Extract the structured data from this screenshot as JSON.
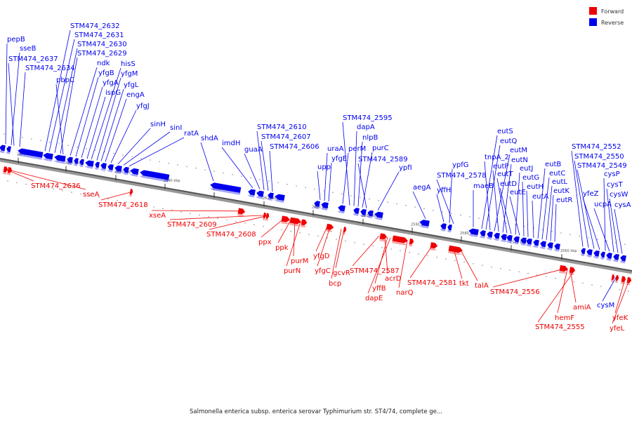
{
  "legend": {
    "forward_label": "Forward",
    "reverse_label": "Reverse",
    "forward_color": "#ee0000",
    "reverse_color": "#0000ee"
  },
  "caption": "Salmonella enterica subsp. enterica serovar Typhimurium str. ST4/74, complete ge...",
  "ticks": [
    "2670 kbp",
    "2660 kbp",
    "2650 kbp",
    "2640 kbp",
    "2630 kbp",
    "2620 kbp",
    "2610 kbp",
    "2600 kbp",
    "2590 kbp",
    "2580 kbp",
    "2570 kbp",
    "2560 kbp"
  ],
  "reverse_labels": [
    "pepB",
    "sseB",
    "STM474_2637",
    "STM474_2634",
    "STM474_2632",
    "STM474_2631",
    "STM474_2630",
    "STM474_2629",
    "pbpC",
    "ndk",
    "yfgB",
    "yfgA",
    "ispG",
    "hisS",
    "yfgM",
    "yfgL",
    "engA",
    "yfgJ",
    "sinH",
    "sinI",
    "ratA",
    "shdA",
    "imdH",
    "guaA",
    "STM474_2610",
    "STM474_2607",
    "STM474_2606",
    "upp",
    "uraA",
    "yfgE",
    "perM",
    "STM474_2595",
    "dapA",
    "nlpB",
    "purC",
    "STM474_2589",
    "ypfI",
    "aegA",
    "yffH",
    "ypfG",
    "STM474_2578",
    "maeB",
    "eutS",
    "eutQ",
    "tnpA_2",
    "eutM",
    "eutP",
    "eutN",
    "eutT",
    "eutD",
    "eutJ",
    "eutE",
    "eutG",
    "eutH",
    "eutA",
    "eutB",
    "eutC",
    "eutL",
    "eutK",
    "eutR",
    "STM474_2552",
    "STM474_2550",
    "STM474_2549",
    "yfeZ",
    "cysP",
    "ucpA",
    "cysT",
    "cysW",
    "cysA",
    "cysM"
  ],
  "forward_labels": [
    "STM474_2636",
    "sseA",
    "STM474_2618",
    "xseA",
    "STM474_2609",
    "STM474_2608",
    "ppx",
    "ppk",
    "purM",
    "purN",
    "yfgD",
    "yfgC",
    "gcvR",
    "bcp",
    "STM474_2587",
    "acrD",
    "yffB",
    "dapE",
    "narQ",
    "STM474_2581",
    "tkt",
    "talA",
    "STM474_2556",
    "hemF",
    "amiA",
    "STM474_2555",
    "yfeK",
    "yfeL"
  ]
}
